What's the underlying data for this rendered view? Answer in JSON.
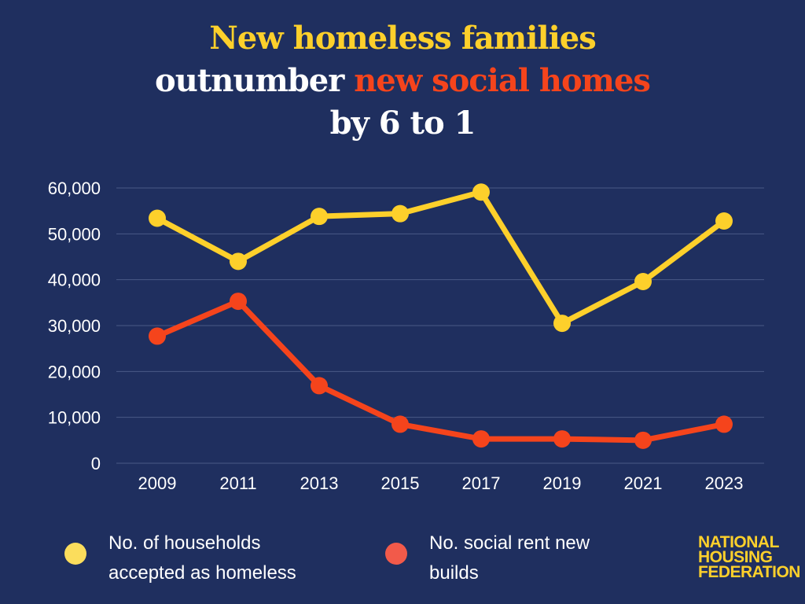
{
  "header": {
    "line1": "New homeless families",
    "line2_a": "outnumber ",
    "line2_b": "new social homes",
    "line3": "by 6 to 1"
  },
  "colors": {
    "background": "#1f2f5f",
    "yellow": "#fdd02b",
    "red": "#f5441c",
    "white": "#ffffff",
    "grid": "#4a5a86"
  },
  "chart_data": {
    "type": "line",
    "x": [
      "2009",
      "2011",
      "2013",
      "2015",
      "2017",
      "2019",
      "2021",
      "2023"
    ],
    "ylim": [
      0,
      60000
    ],
    "yticks": [
      0,
      10000,
      20000,
      30000,
      40000,
      50000,
      60000
    ],
    "ytick_labels": [
      "0",
      "10,000",
      "20,000",
      "30,000",
      "40,000",
      "50,000",
      "60,000"
    ],
    "grid": true,
    "legend_position": "bottom",
    "series": [
      {
        "name": "No. of households accepted as homeless",
        "color": "#fdd02b",
        "values": [
          53400,
          44000,
          53800,
          54400,
          59100,
          30500,
          39600,
          52800
        ]
      },
      {
        "name": "No. social rent new builds",
        "color": "#f5441c",
        "values": [
          27700,
          35300,
          16900,
          8500,
          5300,
          5300,
          5000,
          8500
        ]
      }
    ]
  },
  "legend": {
    "homeless_line1": "No. of households",
    "homeless_line2": "accepted as homeless",
    "social_line1": "No. social rent new",
    "social_line2": "builds",
    "homeless_dot_color": "#fbdd5c",
    "social_dot_color": "#f25a4a"
  },
  "logo": {
    "line1": "NATIONAL",
    "line2": "HOUSING",
    "line3": "FEDERATION"
  }
}
